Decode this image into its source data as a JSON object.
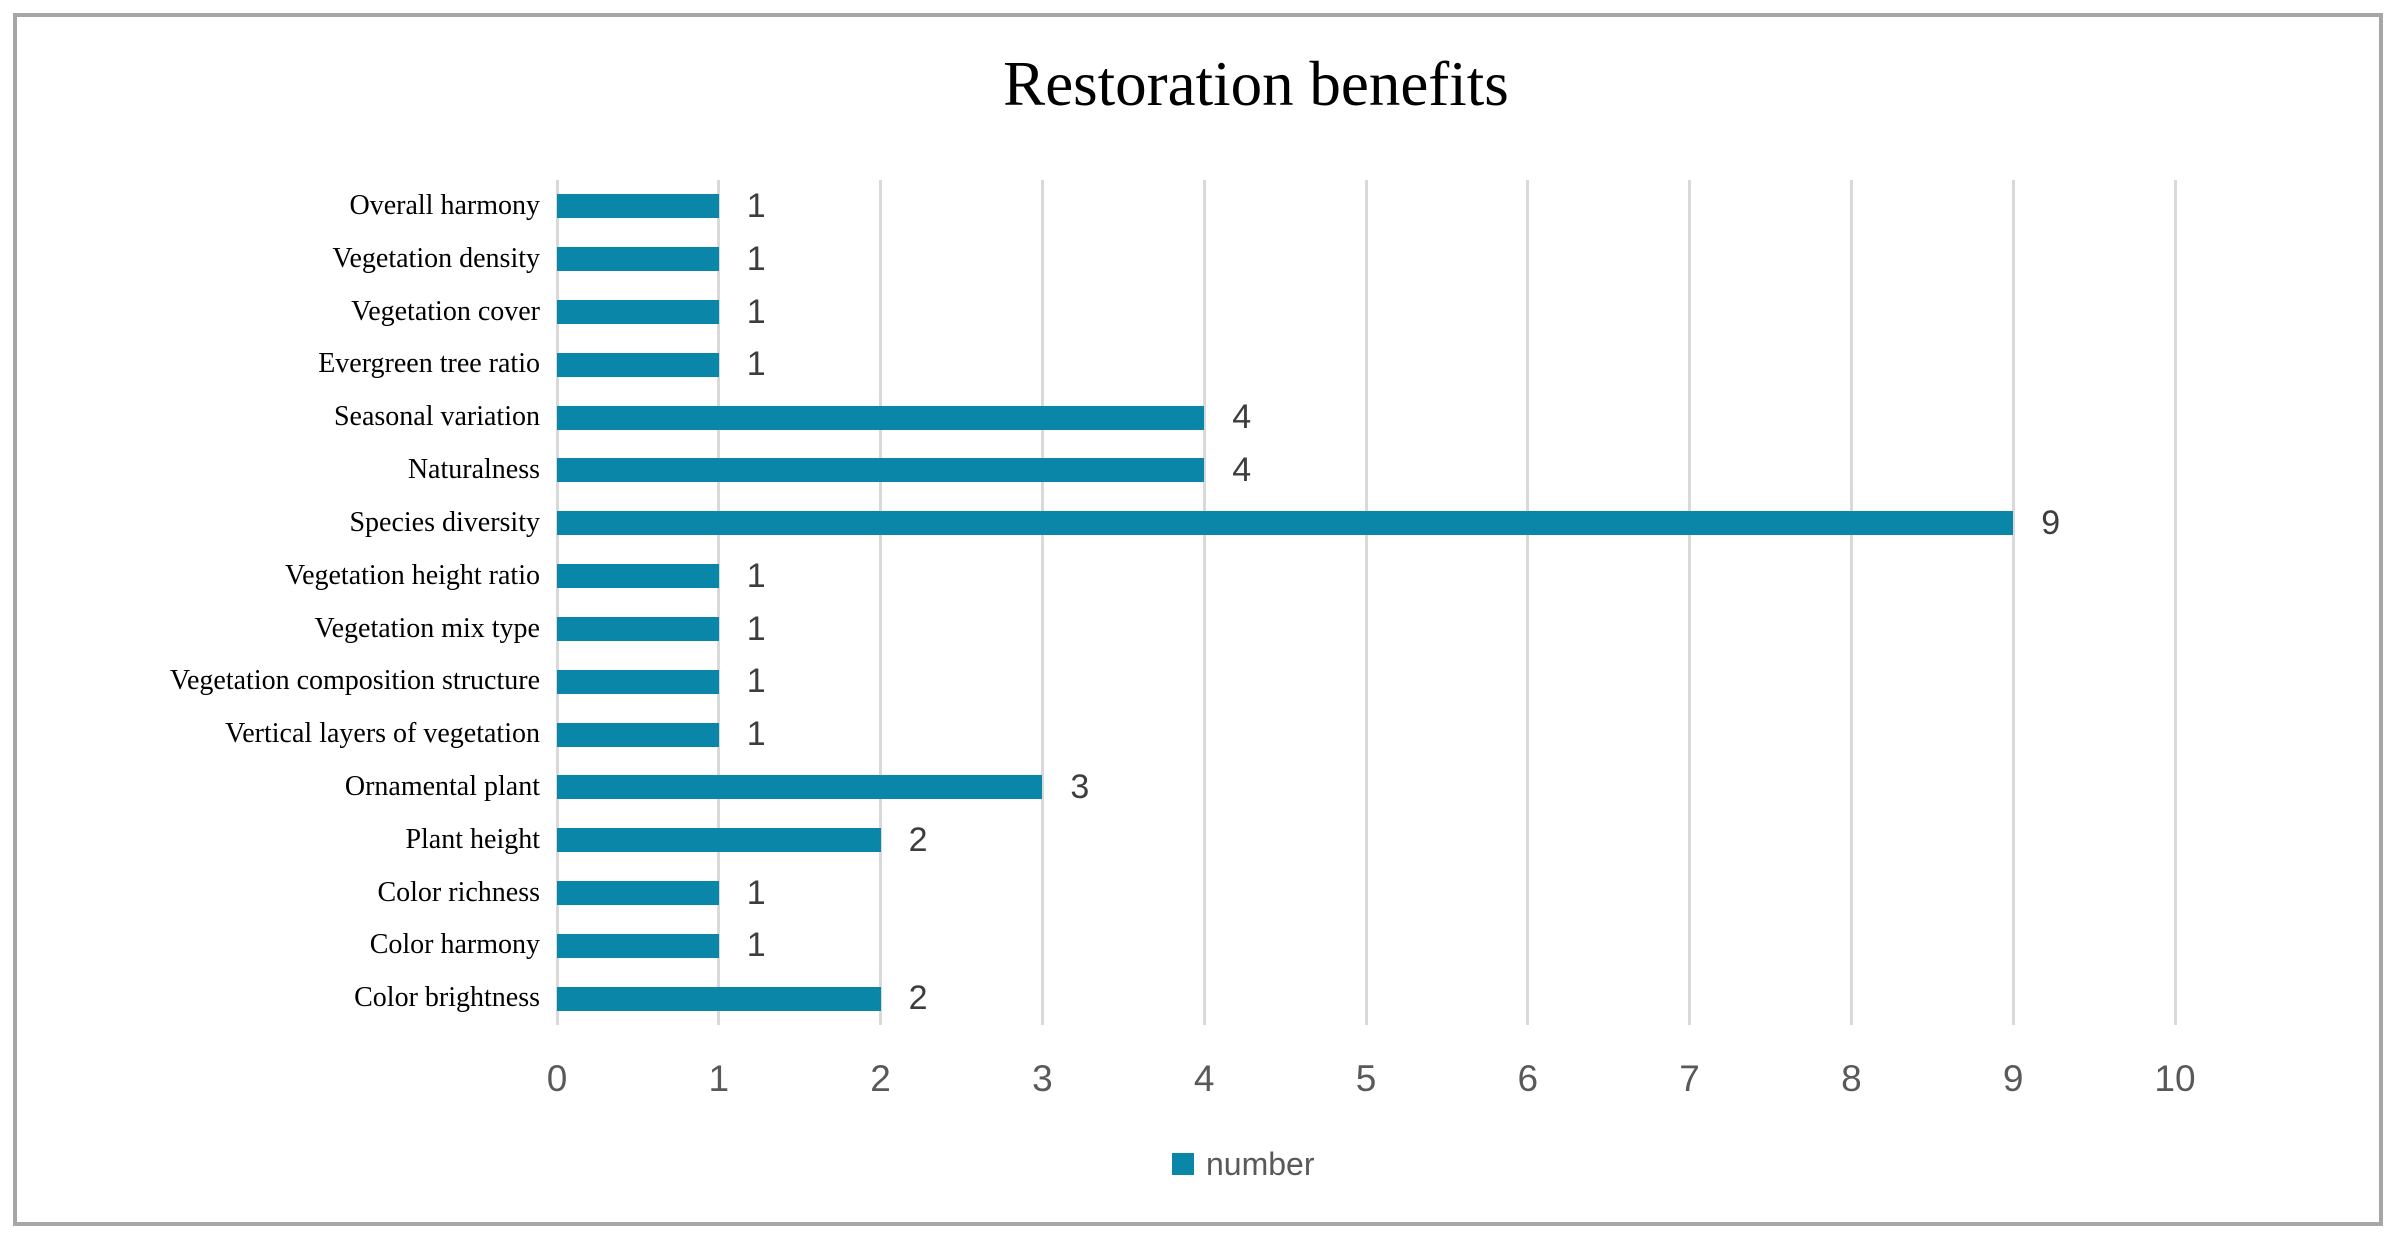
{
  "chart_data": {
    "type": "bar",
    "orientation": "horizontal",
    "title": "Restoration benefits",
    "categories": [
      "Overall harmony",
      "Vegetation density",
      "Vegetation cover",
      "Evergreen tree ratio",
      "Seasonal variation",
      "Naturalness",
      "Species diversity",
      "Vegetation height ratio",
      "Vegetation mix type",
      "Vegetation composition structure",
      "Vertical layers of vegetation",
      "Ornamental plant",
      "Plant height",
      "Color richness",
      "Color harmony",
      "Color brightness"
    ],
    "values": [
      1,
      1,
      1,
      1,
      4,
      4,
      9,
      1,
      1,
      1,
      1,
      3,
      2,
      1,
      1,
      2
    ],
    "series_name": "number",
    "data_labels_shown": true,
    "xlabel": "",
    "ylabel": "",
    "xlim": [
      0,
      10
    ],
    "xticks": [
      0,
      1,
      2,
      3,
      4,
      5,
      6,
      7,
      8,
      9,
      10
    ],
    "grid": "vertical",
    "legend": {
      "label": "number",
      "position": "bottom"
    },
    "colors": {
      "bar": "#0a86a8",
      "gridline": "#d9d9d9",
      "axis_text": "#595959",
      "data_label_text": "#3d3d3d",
      "category_text": "#000000",
      "title_text": "#000000",
      "frame_border": "#a6a6a6",
      "background": "#ffffff"
    }
  }
}
